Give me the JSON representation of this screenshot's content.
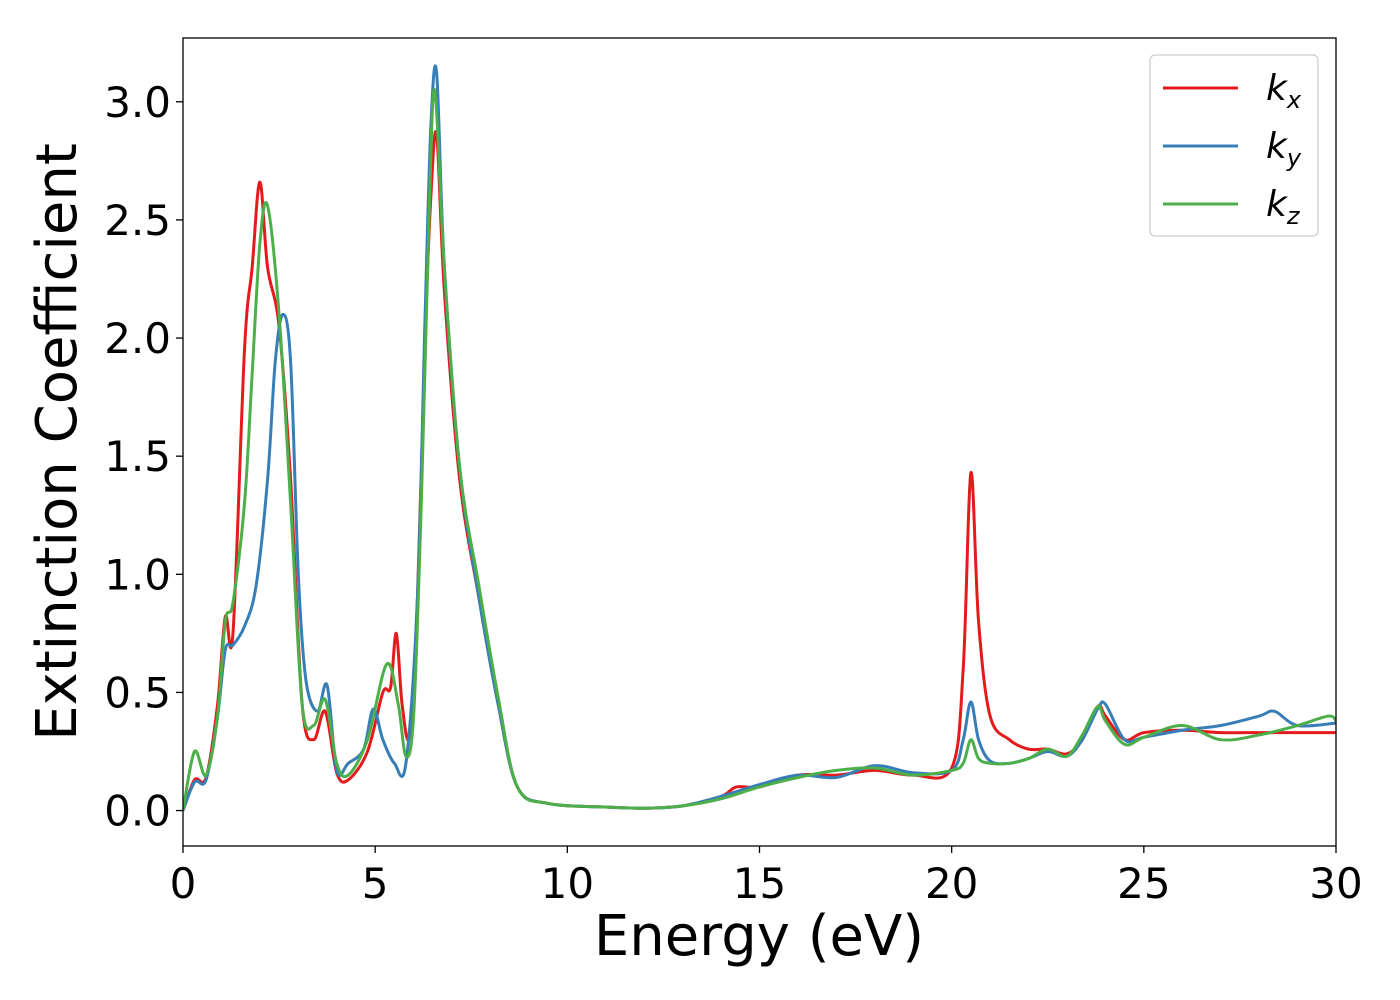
{
  "chart_data": {
    "type": "line",
    "title": "",
    "xlabel": "Energy (eV)",
    "ylabel": "Extinction Coefficient",
    "xlim": [
      0,
      30
    ],
    "ylim": [
      -0.15,
      3.27
    ],
    "xticks": [
      0,
      5,
      10,
      15,
      20,
      25,
      30
    ],
    "xtick_labels": [
      "0",
      "5",
      "10",
      "15",
      "20",
      "25",
      "30"
    ],
    "yticks": [
      0.0,
      0.5,
      1.0,
      1.5,
      2.0,
      2.5,
      3.0
    ],
    "ytick_labels": [
      "0.0",
      "0.5",
      "1.0",
      "1.5",
      "2.0",
      "2.5",
      "3.0"
    ],
    "grid": false,
    "legend_position": "top-right",
    "series": [
      {
        "name": "kx",
        "label_base": "k",
        "label_sub": "x",
        "color": "#e41a1c",
        "x": [
          0,
          0.3,
          0.6,
          0.9,
          1.1,
          1.3,
          1.6,
          1.8,
          2.0,
          2.2,
          2.5,
          2.8,
          3.1,
          3.4,
          3.7,
          4.0,
          4.3,
          4.8,
          5.2,
          5.4,
          5.55,
          5.7,
          5.9,
          6.1,
          6.3,
          6.45,
          6.6,
          6.8,
          7.2,
          7.7,
          8.2,
          8.7,
          9.5,
          11,
          12,
          13,
          14,
          14.4,
          15,
          16,
          17,
          18,
          19,
          20,
          20.3,
          20.5,
          20.7,
          21.0,
          21.5,
          22,
          22.5,
          23.0,
          23.4,
          23.8,
          24.0,
          24.5,
          25,
          26,
          27,
          28,
          29,
          30
        ],
        "y": [
          0.0,
          0.13,
          0.14,
          0.45,
          0.82,
          0.75,
          1.95,
          2.3,
          2.66,
          2.3,
          2.05,
          1.4,
          0.45,
          0.3,
          0.42,
          0.16,
          0.13,
          0.25,
          0.5,
          0.52,
          0.75,
          0.45,
          0.32,
          0.9,
          2.0,
          2.6,
          2.86,
          2.2,
          1.4,
          0.9,
          0.45,
          0.1,
          0.03,
          0.015,
          0.01,
          0.02,
          0.06,
          0.1,
          0.1,
          0.15,
          0.15,
          0.17,
          0.15,
          0.18,
          0.6,
          1.43,
          0.8,
          0.4,
          0.3,
          0.26,
          0.26,
          0.24,
          0.3,
          0.44,
          0.4,
          0.3,
          0.33,
          0.34,
          0.33,
          0.33,
          0.33,
          0.33
        ]
      },
      {
        "name": "ky",
        "label_base": "k",
        "label_sub": "y",
        "color": "#377eb8",
        "x": [
          0,
          0.3,
          0.6,
          0.9,
          1.1,
          1.3,
          1.6,
          1.9,
          2.2,
          2.4,
          2.6,
          2.8,
          3.0,
          3.2,
          3.5,
          3.75,
          4.0,
          4.3,
          4.7,
          4.95,
          5.2,
          5.5,
          5.8,
          6.1,
          6.3,
          6.45,
          6.6,
          6.8,
          7.2,
          7.7,
          8.2,
          8.7,
          9.5,
          11,
          12,
          13,
          14,
          15,
          16,
          17,
          18,
          19,
          20,
          20.3,
          20.5,
          20.7,
          21.0,
          21.5,
          22,
          22.5,
          23.0,
          23.4,
          23.8,
          24.0,
          24.5,
          25,
          26,
          27,
          28,
          28.4,
          29,
          30
        ],
        "y": [
          0.0,
          0.12,
          0.13,
          0.4,
          0.68,
          0.7,
          0.78,
          0.95,
          1.4,
          1.9,
          2.1,
          1.9,
          1.0,
          0.55,
          0.42,
          0.53,
          0.17,
          0.2,
          0.26,
          0.43,
          0.3,
          0.2,
          0.2,
          0.9,
          2.1,
          2.9,
          3.12,
          2.3,
          1.45,
          0.9,
          0.45,
          0.1,
          0.03,
          0.015,
          0.01,
          0.02,
          0.06,
          0.11,
          0.15,
          0.14,
          0.19,
          0.16,
          0.17,
          0.3,
          0.46,
          0.3,
          0.21,
          0.2,
          0.22,
          0.25,
          0.23,
          0.3,
          0.43,
          0.45,
          0.3,
          0.31,
          0.34,
          0.36,
          0.4,
          0.42,
          0.36,
          0.37
        ]
      },
      {
        "name": "kz",
        "label_base": "k",
        "label_sub": "z",
        "color": "#4daf4a",
        "x": [
          0,
          0.3,
          0.6,
          0.9,
          1.1,
          1.3,
          1.6,
          1.8,
          2.0,
          2.2,
          2.5,
          2.8,
          3.1,
          3.4,
          3.7,
          4.0,
          4.3,
          4.8,
          5.3,
          5.6,
          5.8,
          6.0,
          6.2,
          6.4,
          6.55,
          6.8,
          7.2,
          7.7,
          8.2,
          8.7,
          9.5,
          11,
          12,
          13,
          14,
          15,
          16,
          17,
          18,
          19,
          20,
          20.3,
          20.5,
          20.7,
          21.0,
          21.5,
          22,
          22.5,
          23.0,
          23.4,
          23.8,
          24.0,
          24.5,
          25,
          26,
          27,
          28,
          29,
          29.8,
          30
        ],
        "y": [
          0.0,
          0.25,
          0.15,
          0.4,
          0.8,
          0.88,
          1.3,
          1.85,
          2.4,
          2.56,
          2.1,
          1.3,
          0.45,
          0.36,
          0.47,
          0.2,
          0.15,
          0.3,
          0.62,
          0.45,
          0.23,
          0.4,
          1.3,
          2.5,
          3.05,
          2.3,
          1.45,
          0.95,
          0.48,
          0.1,
          0.03,
          0.015,
          0.01,
          0.02,
          0.05,
          0.1,
          0.14,
          0.17,
          0.18,
          0.15,
          0.17,
          0.2,
          0.3,
          0.22,
          0.2,
          0.2,
          0.22,
          0.26,
          0.23,
          0.32,
          0.44,
          0.38,
          0.28,
          0.31,
          0.36,
          0.3,
          0.32,
          0.36,
          0.4,
          0.38
        ]
      }
    ]
  }
}
